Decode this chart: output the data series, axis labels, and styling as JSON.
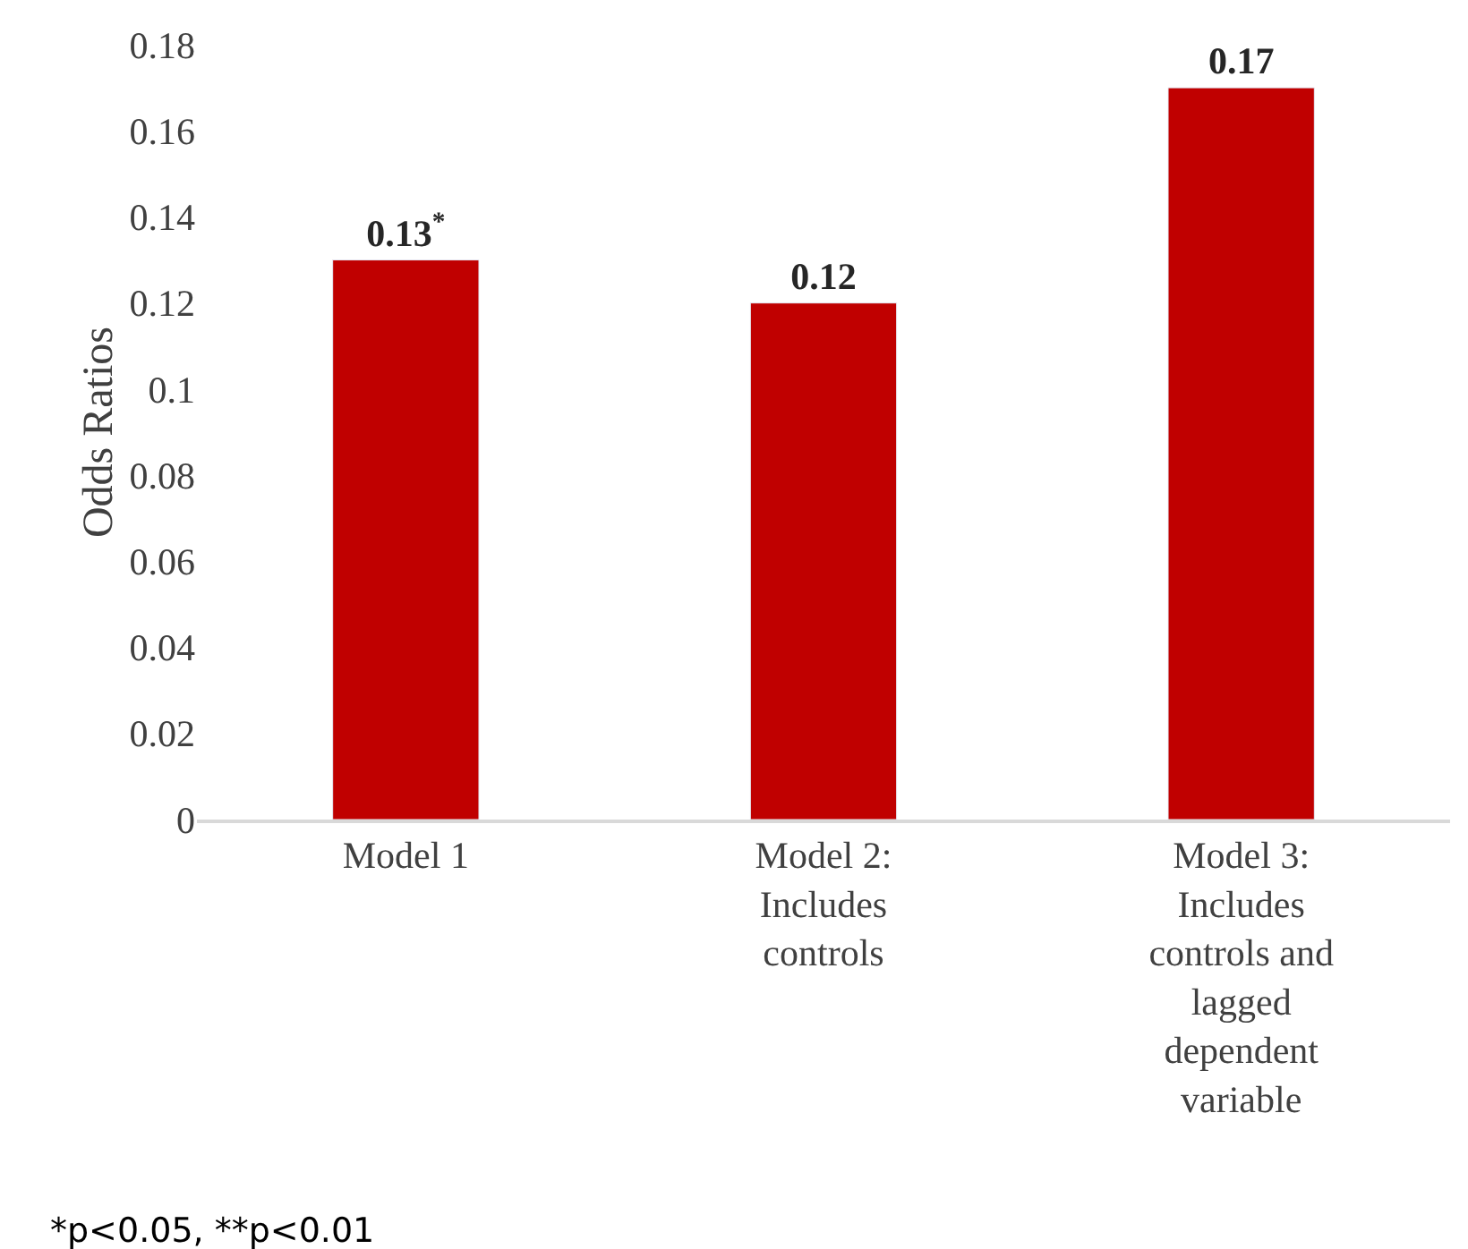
{
  "chart_data": {
    "type": "bar",
    "ylabel": "Odds Ratios",
    "categories": [
      "Model 1",
      "Model 2: Includes controls",
      "Model 3: Includes controls and lagged dependent variable"
    ],
    "values": [
      0.13,
      0.12,
      0.17
    ],
    "color": "#c00000",
    "value_labels": [
      "0.13$^{*}$",
      "0.12",
      "0.17"
    ],
    "ylim": [
      0,
      0.18
    ],
    "yticks": [
      0,
      0.02,
      0.04,
      0.06,
      0.08,
      0.1,
      0.12,
      0.14,
      0.16,
      0.18
    ],
    "legend": false,
    "annotations": [
      "*p<0.05, **p<0.01"
    ]
  }
}
